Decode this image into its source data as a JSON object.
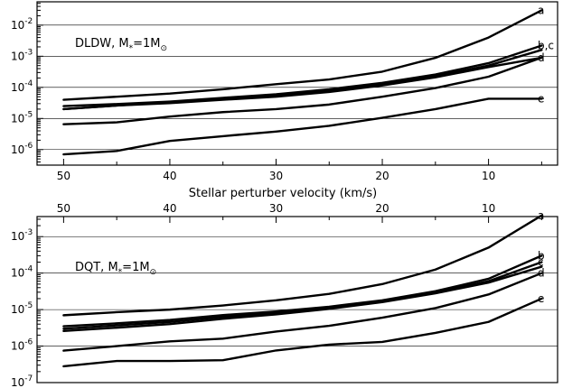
{
  "chart_data": [
    {
      "type": "line",
      "panel_label": "DLDW",
      "mass_label": "M",
      "mass_subscript": "*",
      "mass_value": "=1M",
      "mass_unit_symbol": "⊙",
      "xlabel": "",
      "ylabel": "",
      "x_axis_reversed": true,
      "xlim": [
        52.5,
        3.5
      ],
      "xticks": [
        "50",
        "40",
        "30",
        "20",
        "10"
      ],
      "y_log_scale": true,
      "ylim_exponent": [
        -6.5,
        -1.25
      ],
      "yticks": [
        {
          "base": "10",
          "exp": "-6"
        },
        {
          "base": "10",
          "exp": "-5"
        },
        {
          "base": "10",
          "exp": "-4"
        },
        {
          "base": "10",
          "exp": "-3"
        },
        {
          "base": "10",
          "exp": "-2"
        }
      ],
      "grid": "horizontal",
      "x": [
        50,
        45,
        40,
        35,
        30,
        25,
        20,
        15,
        10,
        5
      ],
      "series": [
        {
          "name": "a",
          "values": [
            4e-05,
            5e-05,
            6.3e-05,
            8.7e-05,
            0.000126,
            0.00018,
            0.00032,
            0.00089,
            0.004,
            0.03
          ]
        },
        {
          "name": "b,c",
          "values": [
            2.5e-05,
            2.9e-05,
            3.5e-05,
            4.6e-05,
            6e-05,
            8.7e-05,
            0.00014,
            0.00026,
            0.0006,
            0.0022
          ]
        },
        {
          "name": "",
          "values": [
            2e-05,
            2.6e-05,
            3.3e-05,
            4.2e-05,
            5.5e-05,
            8.1e-05,
            0.00013,
            0.00023,
            0.0005,
            0.0016
          ]
        },
        {
          "name": "d",
          "values": [
            2e-05,
            2.6e-05,
            3.1e-05,
            4e-05,
            5e-05,
            7.1e-05,
            0.000115,
            0.00021,
            0.00045,
            0.0009
          ]
        },
        {
          "name": "",
          "values": [
            6.5e-06,
            7.5e-06,
            1.15e-05,
            1.6e-05,
            2e-05,
            2.8e-05,
            5e-05,
            9.5e-05,
            0.00022,
            0.0009
          ]
        },
        {
          "name": "e",
          "values": [
            7e-07,
            9e-07,
            1.9e-06,
            2.7e-06,
            3.8e-06,
            5.8e-06,
            1.05e-05,
            2e-05,
            4.3e-05,
            4.3e-05
          ]
        }
      ]
    },
    {
      "type": "line",
      "panel_label": "DQT",
      "mass_label": "M",
      "mass_subscript": "*",
      "mass_value": "=1M",
      "mass_unit_symbol": "⊙",
      "xlabel": "Stellar perturber velocity (km/s)",
      "ylabel": "",
      "x_axis_reversed": true,
      "xlim": [
        52.5,
        3.5
      ],
      "xticks": [
        "50",
        "40",
        "30",
        "20",
        "10"
      ],
      "y_log_scale": true,
      "ylim_exponent": [
        -7,
        -2.45
      ],
      "yticks": [
        {
          "base": "10",
          "exp": "-7"
        },
        {
          "base": "10",
          "exp": "-6"
        },
        {
          "base": "10",
          "exp": "-5"
        },
        {
          "base": "10",
          "exp": "-4"
        },
        {
          "base": "10",
          "exp": "-3"
        }
      ],
      "grid": "horizontal",
      "x": [
        50,
        45,
        40,
        35,
        30,
        25,
        20,
        15,
        10,
        5
      ],
      "series": [
        {
          "name": "a",
          "values": [
            7e-06,
            8.5e-06,
            1e-05,
            1.3e-05,
            1.8e-05,
            2.7e-05,
            5e-05,
            0.000125,
            0.0005,
            0.0038
          ]
        },
        {
          "name": "b",
          "values": [
            3.5e-06,
            4.2e-06,
            5.2e-06,
            7.1e-06,
            8.9e-06,
            1.2e-05,
            1.8e-05,
            3.2e-05,
            7e-05,
            0.0003
          ]
        },
        {
          "name": "c",
          "values": [
            3e-06,
            3.7e-06,
            4.6e-06,
            6.3e-06,
            8.1e-06,
            1.13e-05,
            1.7e-05,
            3e-05,
            6e-05,
            0.0002
          ]
        },
        {
          "name": "",
          "values": [
            2.6e-06,
            3.2e-06,
            4e-06,
            5.6e-06,
            7.4e-06,
            1.05e-05,
            1.6e-05,
            2.8e-05,
            5.5e-05,
            0.00015
          ]
        },
        {
          "name": "d",
          "values": [
            7.5e-07,
            1e-06,
            1.35e-06,
            1.6e-06,
            2.5e-06,
            3.6e-06,
            6e-06,
            1.1e-05,
            2.6e-05,
            0.0001
          ]
        },
        {
          "name": "e",
          "values": [
            2.8e-07,
            3.9e-07,
            3.9e-07,
            4.1e-07,
            7.6e-07,
            1.1e-06,
            1.3e-06,
            2.3e-06,
            4.6e-06,
            2e-05
          ]
        }
      ]
    }
  ]
}
